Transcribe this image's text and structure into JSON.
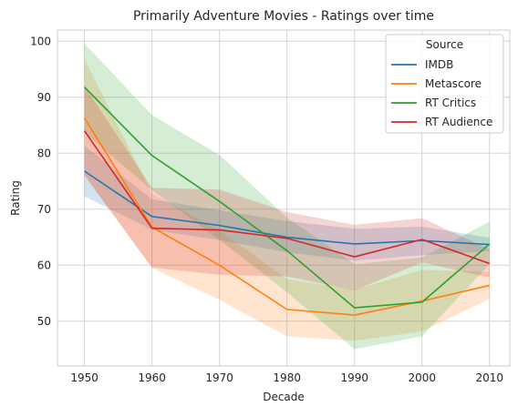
{
  "chart_data": {
    "type": "line",
    "title": "Primarily Adventure Movies - Ratings over time",
    "xlabel": "Decade",
    "ylabel": "Rating",
    "x": [
      1950,
      1960,
      1970,
      1980,
      1990,
      2000,
      2010
    ],
    "x_ticks": [
      1950,
      1960,
      1970,
      1980,
      1990,
      2000,
      2010
    ],
    "y_ticks": [
      50,
      60,
      70,
      80,
      90,
      100
    ],
    "xlim": [
      1946,
      2013
    ],
    "ylim": [
      42,
      102
    ],
    "grid": true,
    "legend": {
      "title": "Source",
      "placement": "top-right"
    },
    "series": [
      {
        "name": "IMDB",
        "color": "#1f77b4",
        "values": [
          76.8,
          68.7,
          67.1,
          65.0,
          63.8,
          64.4,
          63.7
        ],
        "ci_low": [
          72.3,
          66.3,
          64.5,
          62.3,
          60.8,
          61.8,
          62.5
        ],
        "ci_high": [
          81.3,
          71.8,
          69.8,
          67.9,
          66.5,
          66.9,
          64.9
        ]
      },
      {
        "name": "Metascore",
        "color": "#ff7f0e",
        "values": [
          86.3,
          66.8,
          60.0,
          52.1,
          51.1,
          53.6,
          56.4
        ],
        "ci_low": [
          76.2,
          59.5,
          53.8,
          47.3,
          46.5,
          48.2,
          54.0
        ],
        "ci_high": [
          96.8,
          72.8,
          66.2,
          57.5,
          55.6,
          59.2,
          58.8
        ]
      },
      {
        "name": "RT Critics",
        "color": "#2ca02c",
        "values": [
          91.8,
          79.6,
          71.4,
          62.6,
          52.4,
          53.4,
          63.8
        ],
        "ci_low": [
          83.7,
          73.4,
          64.5,
          55.2,
          45.0,
          47.3,
          60.2
        ],
        "ci_high": [
          99.6,
          86.8,
          79.7,
          68.5,
          60.2,
          61.4,
          67.8
        ]
      },
      {
        "name": "RT Audience",
        "color": "#d62728",
        "values": [
          84.0,
          66.6,
          66.3,
          64.8,
          61.5,
          64.6,
          60.3
        ],
        "ci_low": [
          76.0,
          59.6,
          58.3,
          58.0,
          55.5,
          60.5,
          57.8
        ],
        "ci_high": [
          92.0,
          73.8,
          73.5,
          69.5,
          67.2,
          68.4,
          62.9
        ]
      }
    ]
  }
}
